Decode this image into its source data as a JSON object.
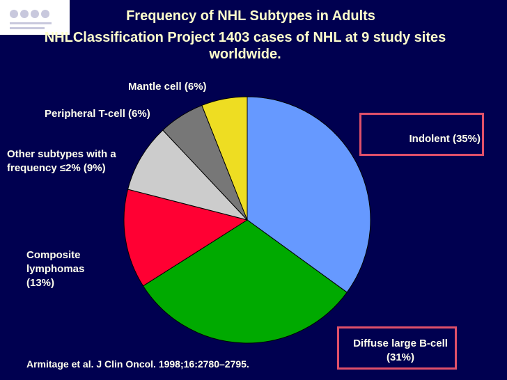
{
  "chart_data": {
    "type": "pie",
    "title": "Frequency of NHL Subtypes in Adults",
    "subtitle": "NHLClassification Project 1403 cases of NHL at 9 study sites worldwide.",
    "categories": [
      "Indolent (35%)",
      "Diffuse large B-cell (31%)",
      "Composite lymphomas (13%)",
      "Other subtypes with a frequency ≤2% (9%)",
      "Peripheral T-cell (6%)",
      "Mantle cell (6%)"
    ],
    "values": [
      35,
      31,
      13,
      9,
      6,
      6
    ],
    "colors": [
      "#6699ff",
      "#00aa00",
      "#ff0033",
      "#cccccc",
      "#777777",
      "#eedd22"
    ],
    "source": "Armitage et al. J Clin Oncol. 1998;16:2780–2795."
  }
}
